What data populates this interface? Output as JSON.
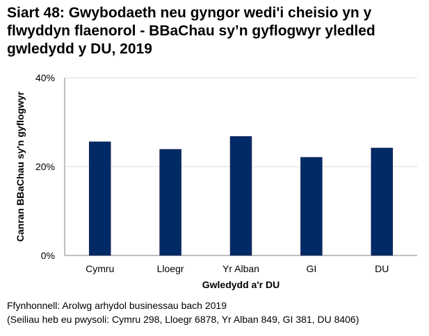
{
  "chart_data": {
    "type": "bar",
    "title": "Siart 48: Gwybodaeth neu gyngor wedi'i cheisio yn y flwyddyn flaenorol - BBaChau sy’n gyflogwyr yledled gwledydd y DU, 2019",
    "xlabel": "Gwledydd a'r DU",
    "ylabel": "Canran BBaChau sy'n gyflogwyr",
    "categories": [
      "Cymru",
      "Lloegr",
      "Yr Alban",
      "GI",
      "DU"
    ],
    "values": [
      25.6,
      23.9,
      26.8,
      22.1,
      24.2
    ],
    "ylim": [
      0,
      40
    ],
    "yticks": [
      0,
      20,
      40
    ],
    "ytick_labels": [
      "0%",
      "20%",
      "40%"
    ],
    "grid": true,
    "legend": "none",
    "bar_color": "#002b66"
  },
  "footer": {
    "source": "Ffynhonnell: Arolwg arhydol businessau bach 2019",
    "bases": "(Seiliau heb eu pwysoli: Cymru 298, Lloegr 6878, Yr Alban 849, GI 381, DU 8406)"
  }
}
